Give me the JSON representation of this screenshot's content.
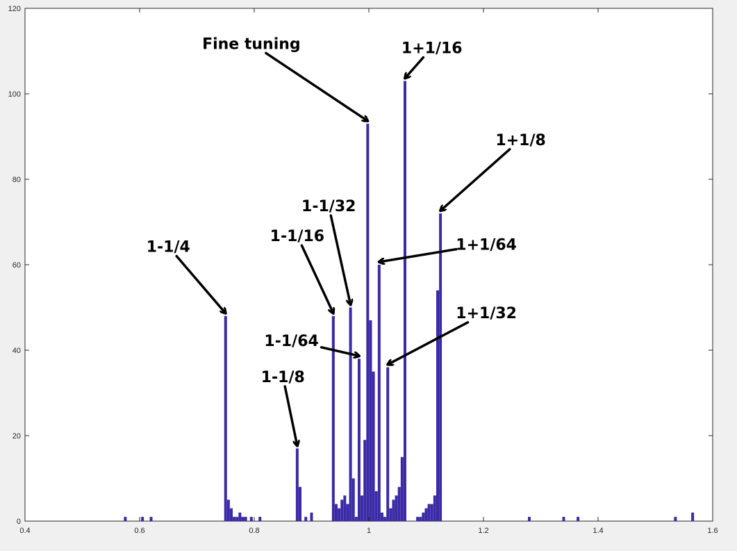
{
  "chart_data": {
    "type": "bar",
    "title": "",
    "xlabel": "",
    "ylabel": "",
    "xlim": [
      0.4,
      1.6
    ],
    "ylim": [
      0,
      120
    ],
    "grid": false,
    "legend": "none",
    "bar_color": "#3a2aa6",
    "xticks": [
      0.4,
      0.6,
      0.8,
      1.0,
      1.2,
      1.4,
      1.6
    ],
    "xtick_labels": [
      "0.4",
      "0.6",
      "0.8",
      "1",
      "1.2",
      "1.4",
      "1.6"
    ],
    "yticks": [
      0,
      20,
      40,
      60,
      80,
      100,
      120
    ],
    "ytick_labels": [
      "0",
      "20",
      "40",
      "60",
      "80",
      "100",
      "120"
    ],
    "bars": [
      {
        "x": 0.575,
        "y": 1
      },
      {
        "x": 0.605,
        "y": 1
      },
      {
        "x": 0.62,
        "y": 1
      },
      {
        "x": 0.75,
        "y": 48
      },
      {
        "x": 0.755,
        "y": 5
      },
      {
        "x": 0.76,
        "y": 3
      },
      {
        "x": 0.765,
        "y": 1
      },
      {
        "x": 0.77,
        "y": 1
      },
      {
        "x": 0.775,
        "y": 2
      },
      {
        "x": 0.78,
        "y": 1
      },
      {
        "x": 0.785,
        "y": 1
      },
      {
        "x": 0.795,
        "y": 1
      },
      {
        "x": 0.81,
        "y": 1
      },
      {
        "x": 0.875,
        "y": 17
      },
      {
        "x": 0.88,
        "y": 8
      },
      {
        "x": 0.89,
        "y": 1
      },
      {
        "x": 0.9,
        "y": 2
      },
      {
        "x": 0.938,
        "y": 48
      },
      {
        "x": 0.943,
        "y": 4
      },
      {
        "x": 0.948,
        "y": 3
      },
      {
        "x": 0.953,
        "y": 5
      },
      {
        "x": 0.958,
        "y": 6
      },
      {
        "x": 0.963,
        "y": 4
      },
      {
        "x": 0.968,
        "y": 50
      },
      {
        "x": 0.973,
        "y": 10
      },
      {
        "x": 0.978,
        "y": 1
      },
      {
        "x": 0.983,
        "y": 38
      },
      {
        "x": 0.988,
        "y": 6
      },
      {
        "x": 0.993,
        "y": 19
      },
      {
        "x": 0.998,
        "y": 93
      },
      {
        "x": 1.003,
        "y": 47
      },
      {
        "x": 1.008,
        "y": 35
      },
      {
        "x": 1.013,
        "y": 7
      },
      {
        "x": 1.018,
        "y": 60
      },
      {
        "x": 1.023,
        "y": 2
      },
      {
        "x": 1.028,
        "y": 1
      },
      {
        "x": 1.033,
        "y": 36
      },
      {
        "x": 1.038,
        "y": 3
      },
      {
        "x": 1.043,
        "y": 5
      },
      {
        "x": 1.048,
        "y": 6
      },
      {
        "x": 1.053,
        "y": 8
      },
      {
        "x": 1.058,
        "y": 15
      },
      {
        "x": 1.063,
        "y": 103
      },
      {
        "x": 1.085,
        "y": 1
      },
      {
        "x": 1.09,
        "y": 1
      },
      {
        "x": 1.095,
        "y": 2
      },
      {
        "x": 1.1,
        "y": 3
      },
      {
        "x": 1.105,
        "y": 4
      },
      {
        "x": 1.11,
        "y": 4
      },
      {
        "x": 1.115,
        "y": 6
      },
      {
        "x": 1.12,
        "y": 54
      },
      {
        "x": 1.125,
        "y": 72
      },
      {
        "x": 1.28,
        "y": 1
      },
      {
        "x": 1.34,
        "y": 1
      },
      {
        "x": 1.365,
        "y": 1
      },
      {
        "x": 1.535,
        "y": 1
      },
      {
        "x": 1.565,
        "y": 2
      }
    ],
    "annotations": [
      {
        "text": "Fine tuning",
        "tx": 0.795,
        "ty": 110.5,
        "ax": 0.998,
        "ay": 93
      },
      {
        "text": "1+1/16",
        "tx": 1.11,
        "ty": 109.5,
        "ax": 1.063,
        "ay": 103
      },
      {
        "text": "1+1/8",
        "tx": 1.265,
        "ty": 88.0,
        "ax": 1.125,
        "ay": 72
      },
      {
        "text": "1-1/32",
        "tx": 0.93,
        "ty": 72.5,
        "ax": 0.968,
        "ay": 50
      },
      {
        "text": "1-1/16",
        "tx": 0.875,
        "ty": 65.5,
        "ax": 0.938,
        "ay": 48
      },
      {
        "text": "1+1/64",
        "tx": 1.205,
        "ty": 63.5,
        "ax": 1.018,
        "ay": 60
      },
      {
        "text": "1-1/4",
        "tx": 0.65,
        "ty": 63.0,
        "ax": 0.75,
        "ay": 48
      },
      {
        "text": "1+1/32",
        "tx": 1.205,
        "ty": 47.5,
        "ax": 1.033,
        "ay": 36
      },
      {
        "text": "1-1/64",
        "tx": 0.865,
        "ty": 41.0,
        "ax": 0.983,
        "ay": 38
      },
      {
        "text": "1-1/8",
        "tx": 0.85,
        "ty": 32.5,
        "ax": 0.875,
        "ay": 17
      }
    ]
  }
}
